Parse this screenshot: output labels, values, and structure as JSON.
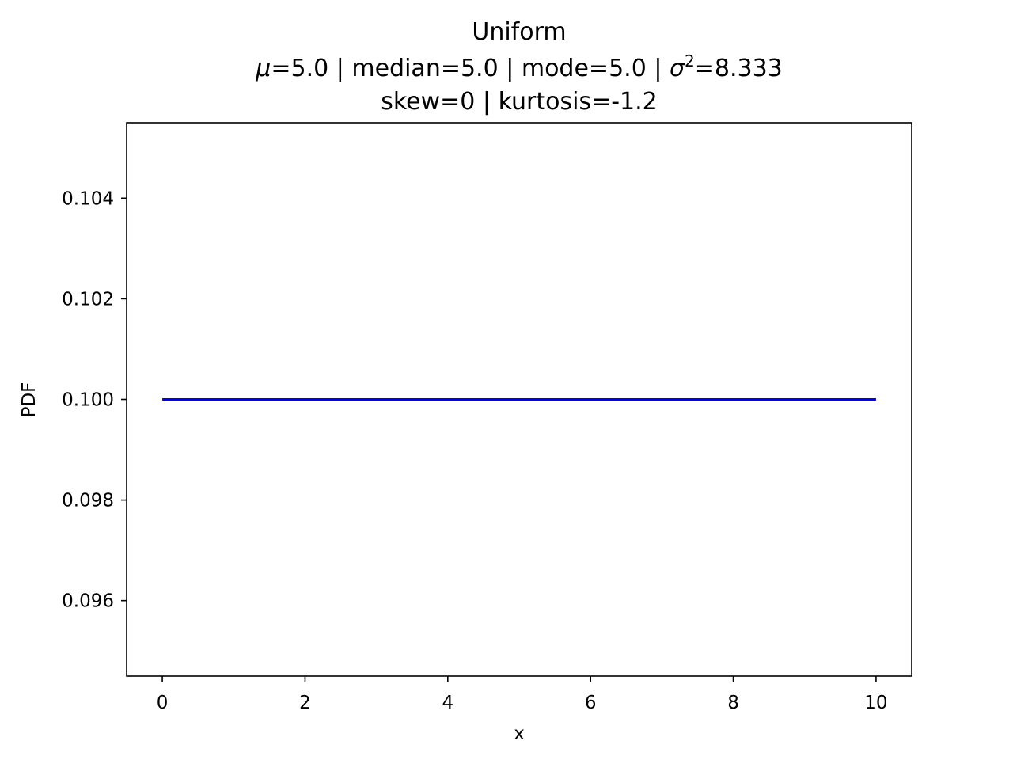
{
  "chart_data": {
    "type": "line",
    "title": "Uniform",
    "subtitle_line1": {
      "mu_symbol": "μ",
      "mu_rest": "=5.0 | median=5.0 | mode=5.0 | ",
      "sigma_symbol": "σ",
      "sigma_exp": "2",
      "sigma_rest": "=8.333"
    },
    "subtitle_line2": "skew=0 | kurtosis=-1.2",
    "xlabel": "x",
    "ylabel": "PDF",
    "xlim": [
      -0.5,
      10.5
    ],
    "ylim": [
      0.0945,
      0.1055
    ],
    "x_ticks": [
      0,
      2,
      4,
      6,
      8,
      10
    ],
    "x_tick_labels": [
      "0",
      "2",
      "4",
      "6",
      "8",
      "10"
    ],
    "y_ticks": [
      0.096,
      0.098,
      0.1,
      0.102,
      0.104
    ],
    "y_tick_labels": [
      "0.096",
      "0.098",
      "0.100",
      "0.102",
      "0.104"
    ],
    "grid": false,
    "series": [
      {
        "color": "#0000ff",
        "x": [
          0,
          10
        ],
        "y": [
          0.1,
          0.1
        ]
      }
    ]
  }
}
